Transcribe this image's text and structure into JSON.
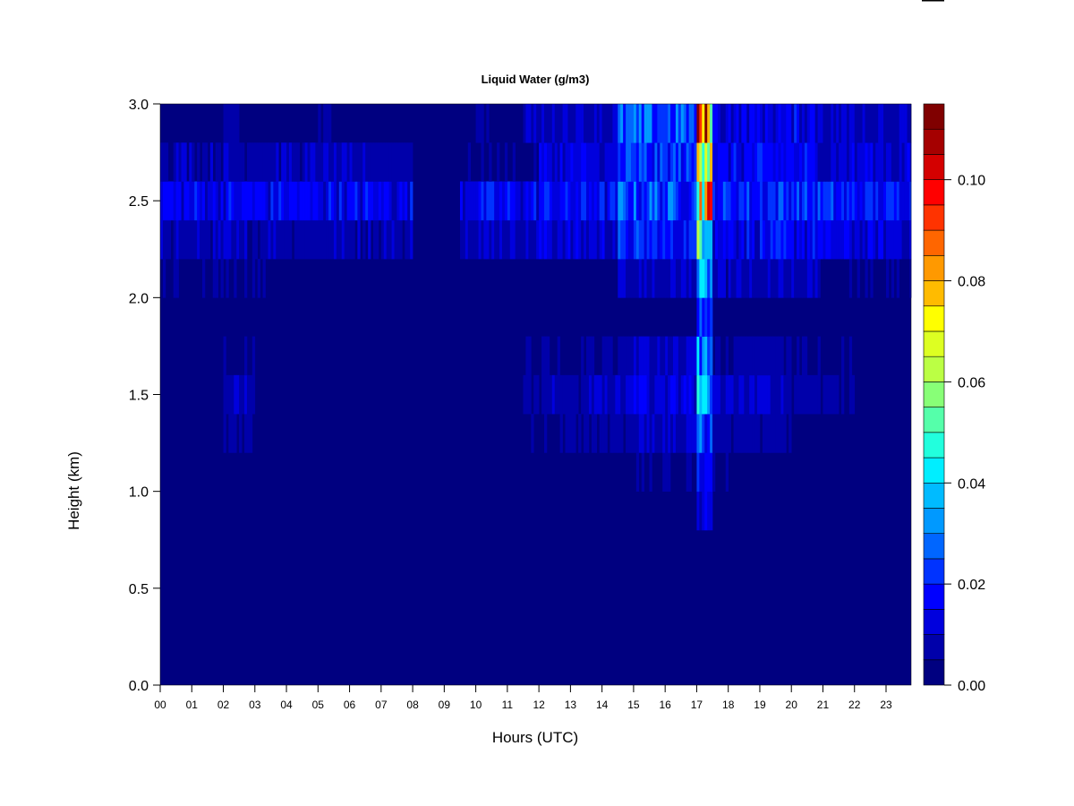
{
  "chart_data": {
    "type": "heatmap",
    "title": "Liquid Water (g/m3)",
    "xlabel": "Hours (UTC)",
    "ylabel": "Height (km)",
    "xlim": [
      0,
      23.8
    ],
    "ylim": [
      0,
      3.0
    ],
    "x_ticks": [
      "00",
      "01",
      "02",
      "03",
      "04",
      "05",
      "06",
      "07",
      "08",
      "09",
      "10",
      "11",
      "12",
      "13",
      "14",
      "15",
      "16",
      "17",
      "18",
      "19",
      "20",
      "21",
      "22",
      "23"
    ],
    "y_ticks": [
      "0.0",
      "0.5",
      "1.0",
      "1.5",
      "2.0",
      "2.5",
      "3.0"
    ],
    "colorbar": {
      "range": [
        0,
        0.115
      ],
      "step": 0.005,
      "tick_labels": [
        "0.00",
        "0.02",
        "0.04",
        "0.06",
        "0.08",
        "0.10"
      ],
      "colors": [
        "#000080",
        "#0000aa",
        "#0000dd",
        "#0000ff",
        "#0033ff",
        "#0066ff",
        "#0099ff",
        "#00bbff",
        "#00eeff",
        "#22ffdd",
        "#55ffaa",
        "#88ff77",
        "#bbff44",
        "#ddff22",
        "#ffff00",
        "#ffbb00",
        "#ff9900",
        "#ff6600",
        "#ff3300",
        "#ff0000",
        "#d40000",
        "#a50000",
        "#800000"
      ]
    },
    "grid": {
      "x_step_hours": 0.5,
      "y_step_km": 0.2,
      "z_units": "1e-3 g/m3",
      "z_rows_from_bottom": [
        [
          1,
          1,
          1,
          1,
          1,
          1,
          1,
          1,
          1,
          1,
          1,
          1,
          1,
          1,
          1,
          1,
          1,
          1,
          1,
          1,
          1,
          1,
          1,
          1,
          1,
          1,
          1,
          1,
          1,
          1,
          1,
          1,
          1,
          1,
          1,
          1,
          1,
          1,
          1,
          1,
          1,
          1,
          1,
          1,
          1,
          1,
          1,
          1
        ],
        [
          1,
          1,
          1,
          1,
          1,
          1,
          1,
          1,
          1,
          1,
          1,
          1,
          1,
          1,
          1,
          1,
          1,
          1,
          1,
          1,
          1,
          1,
          1,
          1,
          1,
          1,
          1,
          1,
          1,
          1,
          1,
          1,
          1,
          1,
          1,
          1,
          1,
          1,
          1,
          1,
          1,
          1,
          1,
          1,
          1,
          1,
          1,
          1
        ],
        [
          1,
          1,
          1,
          1,
          1,
          1,
          1,
          1,
          1,
          1,
          1,
          1,
          1,
          1,
          1,
          1,
          1,
          1,
          1,
          1,
          1,
          1,
          1,
          1,
          1,
          1,
          1,
          1,
          1,
          1,
          1,
          1,
          1,
          1,
          1,
          1,
          1,
          1,
          1,
          1,
          1,
          1,
          1,
          1,
          1,
          1,
          1,
          1
        ],
        [
          1,
          1,
          1,
          1,
          1,
          1,
          1,
          1,
          1,
          1,
          1,
          1,
          1,
          1,
          1,
          1,
          1,
          1,
          1,
          1,
          1,
          1,
          1,
          1,
          1,
          1,
          1,
          1,
          1,
          1,
          1,
          1,
          1,
          1,
          1,
          1,
          1,
          1,
          1,
          1,
          1,
          1,
          1,
          1,
          1,
          1,
          1,
          1
        ],
        [
          1,
          1,
          1,
          1,
          1,
          1,
          1,
          1,
          1,
          1,
          1,
          1,
          1,
          1,
          1,
          1,
          1,
          1,
          1,
          1,
          1,
          1,
          1,
          1,
          1,
          1,
          1,
          1,
          1,
          1,
          1,
          1,
          1,
          1,
          12,
          1,
          1,
          1,
          1,
          1,
          1,
          1,
          1,
          1,
          1,
          1,
          1,
          1
        ],
        [
          2,
          2,
          2,
          2,
          2,
          2,
          2,
          2,
          2,
          2,
          2,
          2,
          2,
          2,
          2,
          2,
          2,
          2,
          2,
          2,
          2,
          2,
          2,
          2,
          2,
          2,
          2,
          2,
          2,
          2,
          4,
          4,
          4,
          4,
          18,
          4,
          2,
          2,
          2,
          2,
          2,
          2,
          2,
          2,
          2,
          2,
          2,
          2
        ],
        [
          2,
          2,
          2,
          2,
          6,
          6,
          2,
          2,
          2,
          2,
          2,
          2,
          2,
          2,
          2,
          2,
          2,
          2,
          2,
          2,
          2,
          2,
          2,
          5,
          5,
          5,
          5,
          6,
          6,
          6,
          9,
          9,
          9,
          9,
          25,
          7,
          7,
          7,
          7,
          7,
          3,
          3,
          3,
          3,
          3,
          3,
          3,
          3
        ],
        [
          2,
          2,
          2,
          2,
          9,
          9,
          2,
          2,
          2,
          2,
          2,
          2,
          2,
          2,
          2,
          2,
          2,
          2,
          2,
          2,
          2,
          2,
          2,
          7,
          7,
          7,
          7,
          9,
          9,
          9,
          14,
          14,
          14,
          14,
          38,
          10,
          10,
          10,
          10,
          10,
          6,
          6,
          6,
          6,
          3,
          3,
          3,
          3
        ],
        [
          2,
          2,
          2,
          2,
          5,
          5,
          2,
          2,
          2,
          2,
          2,
          2,
          2,
          2,
          2,
          2,
          2,
          2,
          2,
          2,
          2,
          2,
          2,
          5,
          5,
          5,
          5,
          6,
          6,
          6,
          10,
          10,
          10,
          10,
          30,
          7,
          7,
          7,
          7,
          7,
          4,
          4,
          4,
          4,
          2,
          2,
          2,
          2
        ],
        [
          2,
          2,
          2,
          2,
          3,
          2,
          2,
          2,
          2,
          2,
          2,
          2,
          2,
          2,
          2,
          2,
          2,
          2,
          2,
          2,
          2,
          2,
          2,
          2,
          2,
          2,
          2,
          2,
          2,
          2,
          2,
          2,
          2,
          2,
          18,
          2,
          2,
          2,
          2,
          2,
          2,
          2,
          2,
          2,
          2,
          2,
          2,
          2
        ],
        [
          4,
          4,
          4,
          4,
          4,
          4,
          4,
          2,
          2,
          2,
          2,
          2,
          2,
          2,
          2,
          2,
          2,
          2,
          2,
          2,
          2,
          2,
          2,
          2,
          2,
          2,
          2,
          2,
          2,
          9,
          9,
          9,
          9,
          9,
          30,
          8,
          8,
          8,
          8,
          8,
          8,
          8,
          4,
          4,
          4,
          4,
          4,
          4
        ],
        [
          8,
          8,
          8,
          8,
          8,
          8,
          8,
          8,
          8,
          8,
          8,
          8,
          8,
          8,
          8,
          8,
          3,
          3,
          3,
          10,
          10,
          10,
          10,
          10,
          12,
          12,
          12,
          12,
          12,
          18,
          18,
          18,
          18,
          18,
          55,
          15,
          15,
          15,
          15,
          15,
          15,
          15,
          12,
          12,
          12,
          12,
          12,
          12
        ],
        [
          15,
          15,
          15,
          15,
          15,
          15,
          15,
          15,
          15,
          15,
          15,
          15,
          15,
          15,
          15,
          15,
          3,
          3,
          3,
          15,
          15,
          15,
          15,
          15,
          16,
          16,
          16,
          16,
          16,
          24,
          24,
          24,
          24,
          24,
          75,
          20,
          20,
          20,
          20,
          20,
          20,
          20,
          18,
          18,
          18,
          18,
          18,
          18
        ],
        [
          8,
          8,
          8,
          8,
          8,
          8,
          8,
          8,
          8,
          8,
          8,
          8,
          8,
          8,
          8,
          8,
          2,
          2,
          2,
          4,
          4,
          4,
          4,
          4,
          12,
          12,
          12,
          12,
          12,
          20,
          20,
          20,
          20,
          20,
          80,
          15,
          15,
          15,
          15,
          15,
          15,
          15,
          12,
          12,
          12,
          12,
          12,
          12
        ],
        [
          3,
          3,
          3,
          3,
          8,
          3,
          3,
          3,
          3,
          3,
          6,
          3,
          3,
          3,
          3,
          3,
          3,
          3,
          3,
          3,
          6,
          3,
          3,
          10,
          10,
          10,
          10,
          10,
          10,
          24,
          24,
          24,
          24,
          24,
          90,
          14,
          14,
          14,
          14,
          14,
          14,
          14,
          10,
          10,
          10,
          10,
          10,
          10
        ]
      ]
    }
  }
}
